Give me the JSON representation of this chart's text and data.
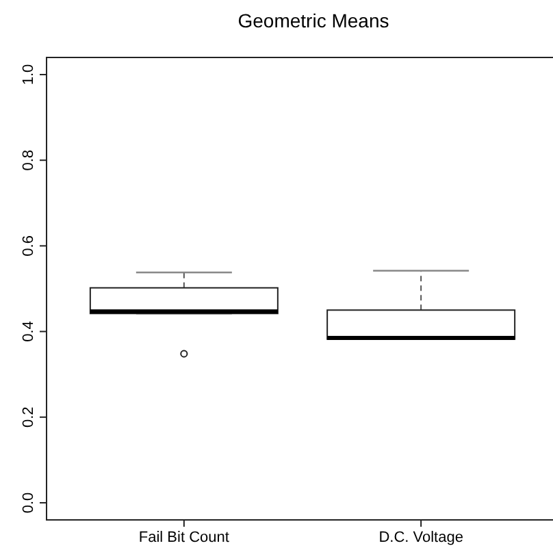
{
  "chart_data": {
    "type": "box",
    "title": "Geometric Means",
    "categories": [
      "Fail Bit Count",
      "D.C. Voltage"
    ],
    "boxes": [
      {
        "low": 0.442,
        "q1": 0.442,
        "median": 0.447,
        "q3": 0.502,
        "high": 0.538,
        "outliers": [
          0.348
        ]
      },
      {
        "low": 0.382,
        "q1": 0.382,
        "median": 0.385,
        "q3": 0.45,
        "high": 0.542
      }
    ],
    "ylim": [
      -0.04,
      1.04
    ],
    "yticks": [
      {
        "value": 0,
        "label": "0.0"
      },
      0.2,
      0.4,
      0.6,
      0.8,
      {
        "value": 1,
        "label": "1.0"
      }
    ],
    "grid": false
  }
}
